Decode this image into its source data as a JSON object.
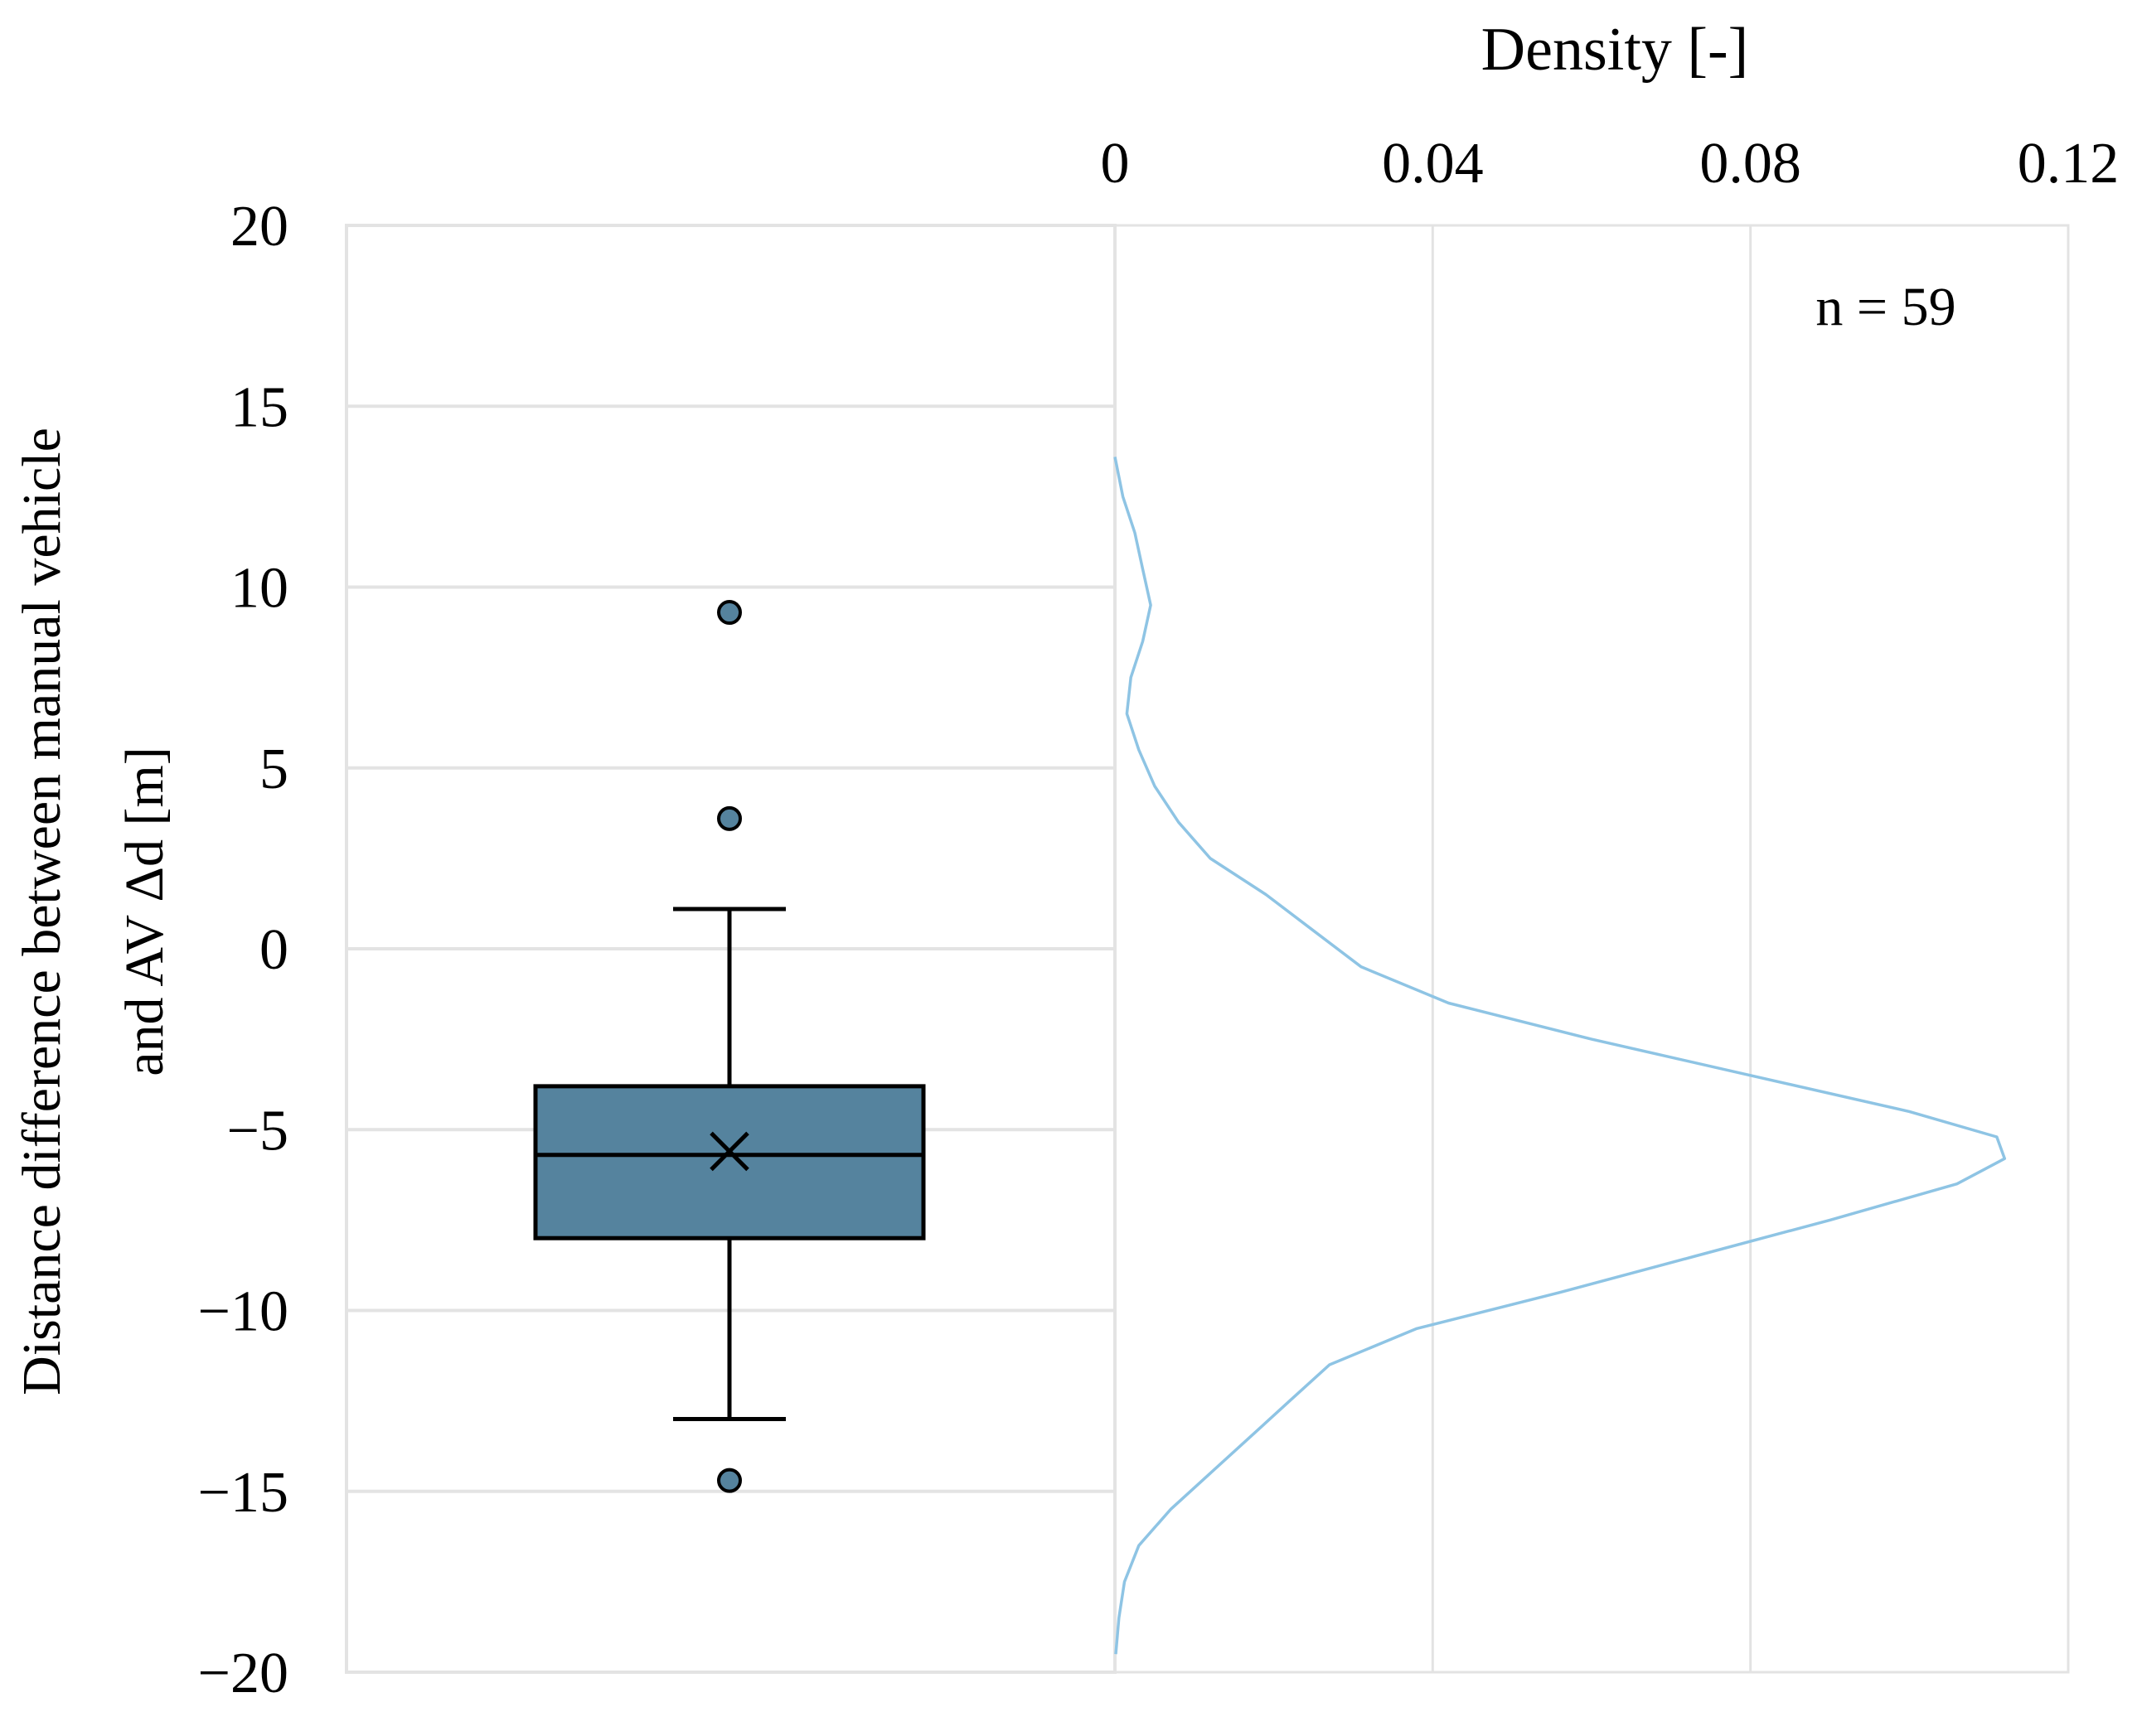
{
  "chart_data": [
    {
      "type": "box",
      "ylabel_line1": "Distance difference between manual vehicle",
      "ylabel_line2": "and AV Δd [m]",
      "ylim": [
        -20,
        20
      ],
      "yticks": [
        20,
        15,
        10,
        5,
        0,
        -5,
        -10,
        -15,
        -20
      ],
      "ytick_labels": [
        "20",
        "15",
        "10",
        "5",
        "0",
        "−5",
        "−10",
        "−15",
        "−20"
      ],
      "grid": true,
      "box": {
        "q1": -8.0,
        "median": -5.7,
        "q3": -3.8,
        "mean": -5.6,
        "whisker_low": -13.0,
        "whisker_high": 1.1,
        "outliers": [
          9.3,
          3.6,
          -14.7
        ]
      },
      "colors": {
        "box_fill": "#55839e",
        "box_stroke": "#000000",
        "gridline": "#e3e3e3"
      }
    },
    {
      "type": "line",
      "orientation": "vertical-density",
      "title": "Density [-]",
      "xlim": [
        0,
        0.12
      ],
      "xticks": [
        0,
        0.04,
        0.08,
        0.12
      ],
      "xtick_labels": [
        "0",
        "0.04",
        "0.08",
        "0.12"
      ],
      "annotation": "n = 59",
      "series": [
        {
          "points": [
            {
              "y": 13.6,
              "x": 0.0
            },
            {
              "y": 12.5,
              "x": 0.001
            },
            {
              "y": 11.5,
              "x": 0.0025
            },
            {
              "y": 10.5,
              "x": 0.0035
            },
            {
              "y": 9.5,
              "x": 0.0045
            },
            {
              "y": 8.5,
              "x": 0.0035
            },
            {
              "y": 7.5,
              "x": 0.002
            },
            {
              "y": 6.5,
              "x": 0.0015
            },
            {
              "y": 5.5,
              "x": 0.003
            },
            {
              "y": 4.5,
              "x": 0.005
            },
            {
              "y": 3.5,
              "x": 0.008
            },
            {
              "y": 2.5,
              "x": 0.012
            },
            {
              "y": 1.5,
              "x": 0.019
            },
            {
              "y": 0.5,
              "x": 0.025
            },
            {
              "y": -0.5,
              "x": 0.031
            },
            {
              "y": -1.5,
              "x": 0.042
            },
            {
              "y": -2.5,
              "x": 0.06
            },
            {
              "y": -3.5,
              "x": 0.08
            },
            {
              "y": -4.5,
              "x": 0.1
            },
            {
              "y": -5.2,
              "x": 0.111
            },
            {
              "y": -5.8,
              "x": 0.112
            },
            {
              "y": -6.5,
              "x": 0.106
            },
            {
              "y": -7.5,
              "x": 0.09
            },
            {
              "y": -8.5,
              "x": 0.073
            },
            {
              "y": -9.5,
              "x": 0.056
            },
            {
              "y": -10.5,
              "x": 0.038
            },
            {
              "y": -11.5,
              "x": 0.027
            },
            {
              "y": -12.5,
              "x": 0.022
            },
            {
              "y": -13.5,
              "x": 0.017
            },
            {
              "y": -14.5,
              "x": 0.012
            },
            {
              "y": -15.5,
              "x": 0.007
            },
            {
              "y": -16.5,
              "x": 0.003
            },
            {
              "y": -17.5,
              "x": 0.0012
            },
            {
              "y": -18.5,
              "x": 0.0005
            },
            {
              "y": -19.5,
              "x": 0.0001
            }
          ]
        }
      ],
      "colors": {
        "line": "#8ec4e4",
        "gridline": "#e3e3e3"
      }
    }
  ]
}
